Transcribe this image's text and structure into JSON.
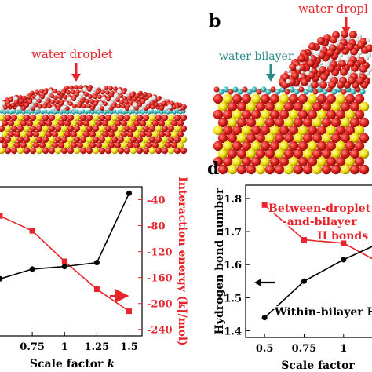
{
  "panel_a": {
    "label_fragment": "r",
    "water_droplet": "water droplet"
  },
  "panel_b": {
    "letter": "b",
    "water_droplet": "water dropl",
    "water_bilayer": "water bilayer"
  },
  "panel_d": {
    "letter": "d"
  },
  "colors": {
    "red": "#e8242b",
    "black": "#000000",
    "cyan": "#3fb5b5",
    "oxygen": "#e0221d",
    "yellow": "#f2e00a"
  },
  "chart_data": [
    {
      "type": "line",
      "panel": "c",
      "xlabel": "Scale factor k",
      "ylabel_right": "Interaction energy (kJ/mol)",
      "x_ticks": [
        "0.75",
        "1",
        "1.25",
        "1.5"
      ],
      "y_ticks_right": [
        "-40",
        "-80",
        "-120",
        "-160",
        "-200",
        "-240"
      ],
      "ylim_right": [
        -250,
        -20
      ],
      "xlim": [
        0.5,
        1.6
      ],
      "series": [
        {
          "name": "",
          "color": "#e8242b",
          "x": [
            0.5,
            0.75,
            1.0,
            1.25,
            1.5
          ],
          "values": [
            -65,
            -88,
            -135,
            -178,
            -212
          ]
        },
        {
          "name": "",
          "color": "#000000",
          "x": [
            0.5,
            0.75,
            1.0,
            1.25,
            1.5
          ],
          "values": [
            -162,
            -147,
            -143,
            -137,
            -30
          ]
        }
      ],
      "arrow": "right"
    },
    {
      "type": "line",
      "panel": "d",
      "xlabel": "Scale factor",
      "ylabel": "Hydrogen bond number",
      "x_ticks": [
        "0.5",
        "0.75",
        "1"
      ],
      "y_ticks": [
        "1.4",
        "1.5",
        "1.6",
        "1.7",
        "1.8"
      ],
      "ylim": [
        1.38,
        1.84
      ],
      "xlim": [
        0.38,
        1.18
      ],
      "series": [
        {
          "name": "Between-droplet-and-bilayer H bonds",
          "color": "#e8242b",
          "x": [
            0.5,
            0.75,
            1.0,
            1.25
          ],
          "values": [
            1.78,
            1.675,
            1.665,
            1.6
          ]
        },
        {
          "name": "Within-bilayer H",
          "color": "#000000",
          "x": [
            0.5,
            0.75,
            1.0,
            1.25
          ],
          "values": [
            1.44,
            1.55,
            1.615,
            1.67
          ]
        }
      ],
      "legend_lines": [
        "Between-droplet",
        "-and-bilayer",
        "H bonds"
      ],
      "black_label": "Within-bilayer H",
      "arrow": "left"
    }
  ]
}
